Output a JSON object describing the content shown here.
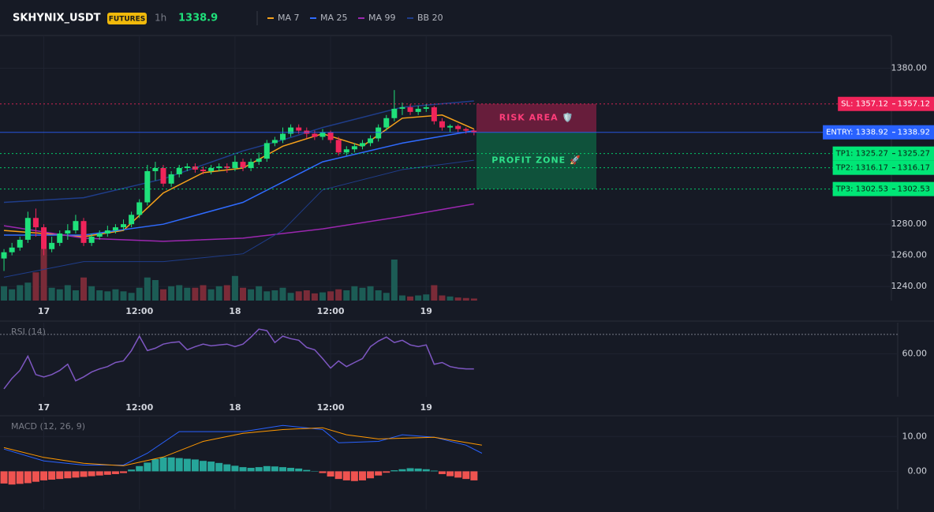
{
  "chart_data": [
    {
      "type": "candlestick",
      "title": "SKHYNIX_USDT",
      "badge": "FUTURES",
      "interval": "1h",
      "last_price": 1338.9,
      "xlim": [
        -0.5,
        111.4
      ],
      "ylim": [
        1231,
        1401
      ],
      "xticks": [
        {
          "value": 5,
          "label": "17"
        },
        {
          "value": 17,
          "label": "12:00"
        },
        {
          "value": 29,
          "label": "18"
        },
        {
          "value": 41,
          "label": "12:00"
        },
        {
          "value": 53,
          "label": "19"
        }
      ],
      "yticks": [
        {
          "value": 1240,
          "label": "1240.00"
        },
        {
          "value": 1260,
          "label": "1260.00"
        },
        {
          "value": 1280,
          "label": "1280.00"
        },
        {
          "value": 1380,
          "label": "1380.00"
        }
      ],
      "colors": {
        "up": "#1fe07a",
        "down": "#f0245a",
        "volume_up": "#1c5c55",
        "volume_down": "#7a2b38"
      },
      "open": [
        1258,
        1262,
        1265,
        1270,
        1284,
        1278,
        1264,
        1268,
        1274,
        1276,
        1282,
        1268,
        1272,
        1274,
        1276,
        1278,
        1280,
        1286,
        1294,
        1314,
        1316,
        1306,
        1312,
        1316,
        1317,
        1315,
        1314,
        1316,
        1317,
        1316,
        1320,
        1316,
        1320,
        1322,
        1332,
        1334,
        1338,
        1342,
        1340,
        1338,
        1336,
        1339,
        1334,
        1326,
        1328,
        1330,
        1332,
        1335,
        1342,
        1348,
        1354,
        1355,
        1352,
        1354,
        1355,
        1346,
        1342,
        1343,
        1341,
        1340
      ],
      "high": [
        1264,
        1268,
        1272,
        1288,
        1290,
        1280,
        1272,
        1276,
        1280,
        1286,
        1284,
        1274,
        1276,
        1279,
        1280,
        1283,
        1288,
        1296,
        1318,
        1320,
        1318,
        1314,
        1318,
        1319,
        1319,
        1317,
        1318,
        1319,
        1319,
        1324,
        1322,
        1322,
        1326,
        1334,
        1336,
        1342,
        1344,
        1344,
        1342,
        1340,
        1341,
        1340,
        1336,
        1330,
        1332,
        1334,
        1337,
        1344,
        1350,
        1366,
        1358,
        1357,
        1356,
        1357,
        1356,
        1348,
        1344,
        1344,
        1342,
        1341
      ],
      "low": [
        1250,
        1260,
        1263,
        1268,
        1272,
        1260,
        1262,
        1266,
        1270,
        1274,
        1266,
        1266,
        1270,
        1272,
        1274,
        1276,
        1278,
        1284,
        1292,
        1308,
        1304,
        1304,
        1310,
        1314,
        1313,
        1312,
        1312,
        1314,
        1313,
        1314,
        1314,
        1314,
        1318,
        1320,
        1330,
        1332,
        1336,
        1338,
        1335,
        1334,
        1334,
        1332,
        1324,
        1324,
        1326,
        1328,
        1330,
        1333,
        1340,
        1346,
        1350,
        1350,
        1350,
        1352,
        1344,
        1340,
        1339,
        1339,
        1338,
        1337
      ],
      "close": [
        1262,
        1265,
        1270,
        1284,
        1278,
        1264,
        1268,
        1274,
        1276,
        1282,
        1268,
        1272,
        1274,
        1276,
        1278,
        1280,
        1286,
        1294,
        1314,
        1316,
        1306,
        1312,
        1316,
        1317,
        1315,
        1314,
        1316,
        1317,
        1316,
        1320,
        1316,
        1320,
        1322,
        1332,
        1334,
        1338,
        1342,
        1340,
        1338,
        1336,
        1339,
        1334,
        1326,
        1328,
        1330,
        1332,
        1335,
        1342,
        1348,
        1354,
        1355,
        1352,
        1354,
        1355,
        1346,
        1342,
        1343,
        1341,
        1340,
        1339
      ],
      "volume": [
        28,
        22,
        30,
        35,
        55,
        100,
        25,
        22,
        30,
        20,
        45,
        28,
        20,
        18,
        22,
        18,
        15,
        25,
        45,
        40,
        22,
        28,
        30,
        25,
        25,
        30,
        22,
        28,
        30,
        48,
        25,
        22,
        28,
        18,
        20,
        25,
        15,
        18,
        20,
        14,
        16,
        18,
        22,
        20,
        28,
        25,
        28,
        20,
        15,
        80,
        10,
        8,
        10,
        12,
        30,
        10,
        8,
        6,
        5,
        4
      ],
      "series": [
        {
          "name": "MA 7",
          "color": "#f7a21b",
          "x": [
            0,
            5,
            10,
            15,
            20,
            25,
            30,
            35,
            40,
            45,
            50,
            55,
            59
          ],
          "values": [
            1276,
            1274,
            1272,
            1276,
            1300,
            1313,
            1316,
            1330,
            1338,
            1330,
            1348,
            1350,
            1341
          ]
        },
        {
          "name": "MA 25",
          "color": "#2f6bff",
          "x": [
            0,
            10,
            20,
            30,
            40,
            50,
            59
          ],
          "values": [
            1273,
            1273,
            1280,
            1294,
            1320,
            1332,
            1340
          ]
        },
        {
          "name": "MA 99",
          "color": "#9c27b0",
          "x": [
            0,
            10,
            20,
            30,
            40,
            50,
            59
          ],
          "values": [
            1279,
            1271,
            1269,
            1271,
            1277,
            1285,
            1293
          ]
        },
        {
          "name": "BB 20",
          "color": "#1f3d8a",
          "x": [
            0,
            10,
            20,
            30,
            35,
            40,
            50,
            59
          ],
          "values": [
            1294,
            1297,
            1309,
            1327,
            1334,
            1342,
            1355,
            1359
          ],
          "lower": [
            1246,
            1256,
            1256,
            1261,
            1276,
            1302,
            1315,
            1321
          ]
        }
      ],
      "levels": [
        {
          "label": "SL: 1357.12",
          "value": 1357.12,
          "color": "#f0245a",
          "dash": true
        },
        {
          "label": "ENTRY: 1338.92",
          "value": 1338.92,
          "color": "#2962ff",
          "dash": false
        },
        {
          "label": "TP1: 1325.27",
          "value": 1325.27,
          "color": "#00e676",
          "dash": true
        },
        {
          "label": "TP2: 1316.17",
          "value": 1316.17,
          "color": "#00e676",
          "dash": true
        },
        {
          "label": "TP3: 1302.53",
          "value": 1302.53,
          "color": "#00e676",
          "dash": true
        }
      ],
      "zones": [
        {
          "label": "RISK AREA 🛡️",
          "from": 1357.12,
          "to": 1338.92,
          "color": "#8a1f44",
          "text_color": "#ff3d7a"
        },
        {
          "label": "PROFIT ZONE 🚀",
          "from": 1338.92,
          "to": 1302.53,
          "color": "#0d6b45",
          "text_color": "#2ee08a"
        }
      ]
    },
    {
      "type": "line",
      "title": "RSI (14)",
      "xlim": [
        -0.5,
        111.4
      ],
      "ylim": [
        38,
        76
      ],
      "xticks": [
        {
          "value": 5,
          "label": "17"
        },
        {
          "value": 17,
          "label": "12:00"
        },
        {
          "value": 29,
          "label": "18"
        },
        {
          "value": 41,
          "label": "12:00"
        },
        {
          "value": 53,
          "label": "19"
        }
      ],
      "yticks": [
        {
          "value": 60,
          "label": "60.00"
        }
      ],
      "reference_lines": [
        70
      ],
      "color": "#7e57c2",
      "values": [
        42.1,
        47.4,
        51.5,
        58.8,
        49.4,
        48.2,
        49.4,
        51.5,
        54.7,
        46.2,
        48.2,
        50.7,
        52.3,
        53.5,
        55.6,
        56.4,
        61.7,
        69.1,
        61.7,
        62.9,
        65,
        65.8,
        66.2,
        62.1,
        63.7,
        65,
        64.1,
        64.6,
        65,
        63.7,
        65,
        68.6,
        72.7,
        71.9,
        65.8,
        69.1,
        67.8,
        67,
        63.3,
        62.1,
        57.6,
        52.7,
        56.4,
        53.5,
        55.6,
        57.6,
        63.7,
        66.6,
        68.6,
        65.8,
        67,
        64.6,
        63.7,
        64.6,
        54.7,
        55.6,
        53.5,
        52.7,
        52.3,
        52.3
      ]
    },
    {
      "type": "macd",
      "title": "MACD (12, 26, 9)",
      "xlim": [
        -0.5,
        111.4
      ],
      "ylim": [
        -11,
        15.5
      ],
      "xticks": [
        {
          "value": 5,
          "label": "17"
        },
        {
          "value": 17,
          "label": "12:00"
        },
        {
          "value": 29,
          "label": "18"
        },
        {
          "value": 41,
          "label": "12:00"
        },
        {
          "value": 53,
          "label": "19"
        }
      ],
      "yticks": [
        {
          "value": 0,
          "label": "0.00"
        },
        {
          "value": 10,
          "label": "10.00"
        }
      ],
      "colors": {
        "positive": "#26a69a",
        "negative": "#ef5350"
      },
      "histogram": [
        -3.5,
        -3.8,
        -3.6,
        -3.4,
        -3,
        -2.6,
        -2.4,
        -2.2,
        -2,
        -1.8,
        -1.6,
        -1.4,
        -1.2,
        -1,
        -0.8,
        -0.5,
        0.5,
        1.5,
        2.5,
        3.5,
        4,
        4,
        3.8,
        3.6,
        3.4,
        3,
        2.8,
        2.4,
        2,
        1.6,
        1.2,
        1,
        1.2,
        1.5,
        1.4,
        1.2,
        1,
        0.8,
        0.4,
        0.1,
        -0.5,
        -1.5,
        -2.2,
        -2.6,
        -2.8,
        -2.6,
        -2,
        -1.2,
        -0.4,
        0.3,
        0.6,
        0.9,
        0.8,
        0.6,
        0.2,
        -0.8,
        -1.4,
        -1.8,
        -2.2,
        -2.6
      ],
      "series": [
        {
          "color": "#2962ff",
          "x": [
            0,
            5,
            10,
            15,
            18,
            22,
            30,
            35,
            40,
            42,
            47,
            50,
            54,
            58,
            60
          ],
          "values": [
            6.4,
            3,
            1.8,
            1.8,
            5.2,
            11.4,
            11.4,
            13.2,
            12,
            8.2,
            8.6,
            10.5,
            9.8,
            7.5,
            5.2
          ]
        },
        {
          "color": "#ff9800",
          "x": [
            0,
            5,
            10,
            15,
            20,
            25,
            30,
            35,
            40,
            43,
            47,
            54,
            60
          ],
          "values": [
            6.8,
            4,
            2.3,
            1.6,
            4.1,
            8.6,
            10.9,
            12,
            12.5,
            10.5,
            9.3,
            9.8,
            7.5
          ]
        }
      ]
    }
  ]
}
